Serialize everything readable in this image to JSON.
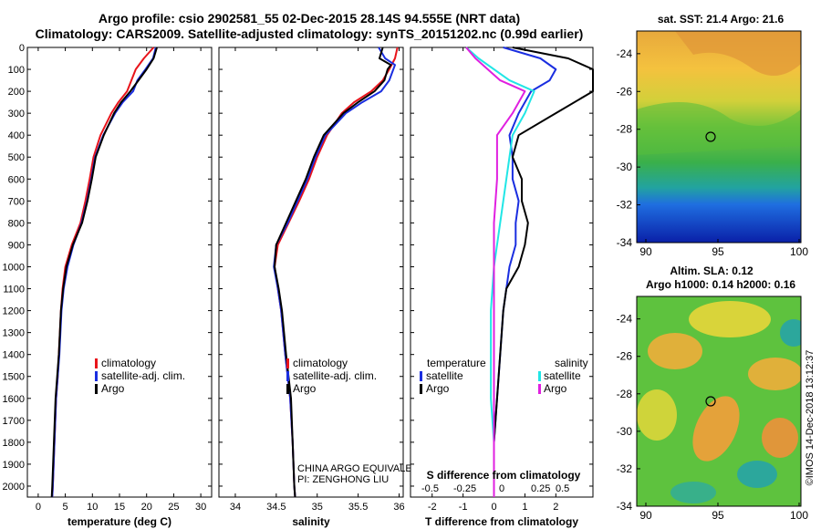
{
  "header": {
    "line1": "Argo profile: csio 2902581_55 02-Dec-2015 28.14S 94.555E (NRT data)",
    "line2": "Climatology: CARS2009. Satellite-adjusted climatology: synTS_20151202.nc (0.99d earlier)"
  },
  "colors": {
    "climatology": "#e8141b",
    "satellite": "#1a2ee0",
    "argo": "#000000",
    "sat_salinity": "#21e6e6",
    "clim_salinity": "#e020e0"
  },
  "chart_data": [
    {
      "type": "line",
      "panel": "temperature",
      "title": "",
      "xlabel": "temperature (deg C)",
      "ylabel": "",
      "xlim": [
        -2,
        32
      ],
      "ylim": [
        2050,
        0
      ],
      "xticks": [
        "0",
        "5",
        "10",
        "15",
        "20",
        "25",
        "30"
      ],
      "yticks": [
        "0",
        "100",
        "200",
        "300",
        "400",
        "500",
        "600",
        "700",
        "800",
        "900",
        "1000",
        "1100",
        "1200",
        "1300",
        "1400",
        "1500",
        "1600",
        "1700",
        "1800",
        "1900",
        "2000"
      ],
      "legend": [
        "climatology",
        "satellite-adj. clim.",
        "Argo"
      ],
      "series": [
        {
          "name": "climatology",
          "color": "#e8141b",
          "points": [
            [
              21.3,
              0
            ],
            [
              19.5,
              50
            ],
            [
              18.0,
              100
            ],
            [
              16.4,
              200
            ],
            [
              14.8,
              250
            ],
            [
              13.5,
              300
            ],
            [
              11.5,
              400
            ],
            [
              10.2,
              500
            ],
            [
              9.5,
              600
            ],
            [
              8.7,
              700
            ],
            [
              7.8,
              800
            ],
            [
              6.2,
              900
            ],
            [
              5.0,
              1000
            ],
            [
              4.5,
              1100
            ],
            [
              4.2,
              1200
            ],
            [
              3.8,
              1400
            ],
            [
              3.6,
              1500
            ],
            [
              3.3,
              1600
            ],
            [
              3.0,
              1800
            ],
            [
              2.7,
              2000
            ],
            [
              2.6,
              2050
            ]
          ]
        },
        {
          "name": "satellite-adj. clim.",
          "color": "#1a2ee0",
          "points": [
            [
              21.7,
              0
            ],
            [
              21.2,
              50
            ],
            [
              19.8,
              100
            ],
            [
              18.3,
              150
            ],
            [
              17.5,
              200
            ],
            [
              15.6,
              250
            ],
            [
              14.2,
              300
            ],
            [
              12.0,
              400
            ],
            [
              10.5,
              500
            ],
            [
              9.8,
              600
            ],
            [
              9.0,
              700
            ],
            [
              8.0,
              800
            ],
            [
              6.5,
              900
            ],
            [
              5.4,
              1000
            ],
            [
              4.7,
              1100
            ],
            [
              4.3,
              1200
            ],
            [
              3.9,
              1400
            ],
            [
              3.6,
              1500
            ],
            [
              3.3,
              1600
            ],
            [
              3.0,
              1800
            ],
            [
              2.7,
              2000
            ],
            [
              2.6,
              2050
            ]
          ]
        },
        {
          "name": "Argo",
          "color": "#000000",
          "points": [
            [
              21.9,
              0
            ],
            [
              21.3,
              50
            ],
            [
              20.0,
              100
            ],
            [
              18.5,
              150
            ],
            [
              17.0,
              200
            ],
            [
              15.3,
              250
            ],
            [
              14.0,
              300
            ],
            [
              12.1,
              400
            ],
            [
              10.6,
              500
            ],
            [
              9.9,
              600
            ],
            [
              9.1,
              700
            ],
            [
              8.1,
              800
            ],
            [
              6.4,
              900
            ],
            [
              5.2,
              1000
            ],
            [
              4.6,
              1100
            ],
            [
              4.2,
              1200
            ],
            [
              3.8,
              1400
            ],
            [
              3.5,
              1500
            ],
            [
              3.2,
              1600
            ],
            [
              2.9,
              1800
            ],
            [
              2.6,
              2000
            ],
            [
              2.5,
              2050
            ]
          ]
        }
      ]
    },
    {
      "type": "line",
      "panel": "salinity",
      "xlabel": "salinity",
      "xlim": [
        33.8,
        36.05
      ],
      "ylim": [
        2050,
        0
      ],
      "xticks": [
        "34",
        "34.5",
        "35",
        "35.5",
        "36"
      ],
      "legend": [
        "climatology",
        "satellite-adj. clim.",
        "Argo"
      ],
      "annotation": [
        "CHINA ARGO EQUIVALENT",
        "PI: ZENGHONG LIU"
      ],
      "series": [
        {
          "name": "climatology",
          "color": "#e8141b",
          "points": [
            [
              35.98,
              0
            ],
            [
              35.95,
              50
            ],
            [
              35.88,
              100
            ],
            [
              35.8,
              150
            ],
            [
              35.66,
              200
            ],
            [
              35.45,
              250
            ],
            [
              35.3,
              300
            ],
            [
              35.12,
              400
            ],
            [
              35.0,
              500
            ],
            [
              34.9,
              600
            ],
            [
              34.78,
              700
            ],
            [
              34.65,
              800
            ],
            [
              34.52,
              900
            ],
            [
              34.48,
              1000
            ],
            [
              34.52,
              1100
            ],
            [
              34.56,
              1200
            ],
            [
              34.61,
              1400
            ],
            [
              34.64,
              1500
            ],
            [
              34.67,
              1600
            ],
            [
              34.7,
              1800
            ],
            [
              34.72,
              2000
            ],
            [
              34.73,
              2050
            ]
          ]
        },
        {
          "name": "satellite-adj. clim.",
          "color": "#1a2ee0",
          "points": [
            [
              35.75,
              0
            ],
            [
              35.83,
              50
            ],
            [
              35.95,
              80
            ],
            [
              35.93,
              100
            ],
            [
              35.88,
              150
            ],
            [
              35.78,
              200
            ],
            [
              35.55,
              250
            ],
            [
              35.35,
              300
            ],
            [
              35.1,
              400
            ],
            [
              34.98,
              500
            ],
            [
              34.88,
              600
            ],
            [
              34.76,
              700
            ],
            [
              34.64,
              800
            ],
            [
              34.5,
              900
            ],
            [
              34.47,
              1000
            ],
            [
              34.52,
              1100
            ],
            [
              34.56,
              1200
            ],
            [
              34.61,
              1400
            ],
            [
              34.64,
              1500
            ],
            [
              34.67,
              1600
            ],
            [
              34.7,
              1800
            ],
            [
              34.72,
              2000
            ],
            [
              34.73,
              2050
            ]
          ]
        },
        {
          "name": "Argo",
          "color": "#000000",
          "points": [
            [
              35.8,
              0
            ],
            [
              35.76,
              50
            ],
            [
              35.9,
              80
            ],
            [
              35.86,
              100
            ],
            [
              35.82,
              150
            ],
            [
              35.7,
              200
            ],
            [
              35.5,
              250
            ],
            [
              35.32,
              300
            ],
            [
              35.08,
              400
            ],
            [
              34.96,
              500
            ],
            [
              34.86,
              600
            ],
            [
              34.74,
              700
            ],
            [
              34.62,
              800
            ],
            [
              34.5,
              900
            ],
            [
              34.48,
              1000
            ],
            [
              34.53,
              1100
            ],
            [
              34.57,
              1200
            ],
            [
              34.62,
              1400
            ],
            [
              34.65,
              1500
            ],
            [
              34.68,
              1600
            ],
            [
              34.7,
              1800
            ],
            [
              34.72,
              2000
            ],
            [
              34.73,
              2050
            ]
          ]
        }
      ]
    },
    {
      "type": "line",
      "panel": "difference",
      "xlabel": "T difference from climatology",
      "xlabel_top": "S difference from climatology",
      "xlim": [
        -2.7,
        3.2
      ],
      "ylim": [
        2050,
        0
      ],
      "xticks": [
        "-2",
        "-1",
        "0",
        "1",
        "2"
      ],
      "xticks_top": [
        "-0.5",
        "-0.25",
        "0",
        "0.25",
        "0.5"
      ],
      "legend_left_title": "temperature",
      "legend_right_title": "salinity",
      "legend_left": [
        "satellite",
        "Argo"
      ],
      "legend_right": [
        "satellite",
        "Argo"
      ],
      "series": [
        {
          "name": "T satellite",
          "color": "#1a2ee0",
          "points": [
            [
              0.3,
              0
            ],
            [
              1.5,
              50
            ],
            [
              2.0,
              100
            ],
            [
              1.8,
              150
            ],
            [
              1.2,
              200
            ],
            [
              0.8,
              300
            ],
            [
              0.5,
              400
            ],
            [
              0.6,
              500
            ],
            [
              0.6,
              600
            ],
            [
              0.8,
              700
            ],
            [
              0.7,
              800
            ],
            [
              0.7,
              900
            ],
            [
              0.5,
              1000
            ],
            [
              0.4,
              1100
            ],
            [
              0.3,
              1200
            ],
            [
              0.2,
              1400
            ],
            [
              0.1,
              1600
            ],
            [
              0.0,
              1800
            ],
            [
              0.0,
              2050
            ]
          ]
        },
        {
          "name": "T Argo",
          "color": "#000000",
          "points": [
            [
              0.6,
              0
            ],
            [
              2.4,
              50
            ],
            [
              3.2,
              100
            ],
            [
              3.2,
              200
            ],
            [
              2.0,
              300
            ],
            [
              0.8,
              400
            ],
            [
              0.6,
              500
            ],
            [
              0.9,
              600
            ],
            [
              0.9,
              700
            ],
            [
              1.1,
              800
            ],
            [
              1.0,
              900
            ],
            [
              0.8,
              1000
            ],
            [
              0.4,
              1100
            ],
            [
              0.3,
              1200
            ],
            [
              0.2,
              1400
            ],
            [
              0.1,
              1600
            ],
            [
              0.0,
              1800
            ],
            [
              0.0,
              2050
            ]
          ]
        },
        {
          "name": "S satellite",
          "color": "#21e6e6",
          "points": [
            [
              -0.9,
              0
            ],
            [
              -0.5,
              50
            ],
            [
              0.5,
              150
            ],
            [
              1.3,
              200
            ],
            [
              1.0,
              300
            ],
            [
              0.6,
              400
            ],
            [
              0.5,
              500
            ],
            [
              0.3,
              700
            ],
            [
              0.1,
              900
            ],
            [
              0.0,
              1000
            ],
            [
              -0.1,
              1200
            ],
            [
              -0.1,
              1400
            ],
            [
              -0.1,
              1600
            ],
            [
              0.0,
              1800
            ],
            [
              0.0,
              2050
            ]
          ]
        },
        {
          "name": "S Argo",
          "color": "#e020e0",
          "points": [
            [
              -0.9,
              0
            ],
            [
              -0.6,
              50
            ],
            [
              0.2,
              150
            ],
            [
              1.0,
              200
            ],
            [
              0.6,
              300
            ],
            [
              0.1,
              400
            ],
            [
              0.1,
              500
            ],
            [
              0.1,
              600
            ],
            [
              0.0,
              800
            ],
            [
              0.0,
              1000
            ],
            [
              0.0,
              1200
            ],
            [
              0.0,
              1400
            ],
            [
              0.0,
              1600
            ],
            [
              0.0,
              1800
            ],
            [
              0.0,
              2050
            ]
          ]
        }
      ]
    }
  ],
  "maps": {
    "top": {
      "title": "sat. SST: 21.4 Argo: 21.6",
      "xticks": [
        "90",
        "95",
        "100"
      ],
      "yticks": [
        "-24",
        "-26",
        "-28",
        "-30",
        "-32",
        "-34"
      ]
    },
    "bottom": {
      "title1": "Altim. SLA: 0.12",
      "title2": "Argo h1000: 0.14 h2000: 0.16",
      "xticks": [
        "90",
        "95",
        "100"
      ],
      "yticks": [
        "-24",
        "-26",
        "-28",
        "-30",
        "-32",
        "-34"
      ]
    },
    "credit": "©IMOS 14-Dec-2018 13:12:37"
  }
}
